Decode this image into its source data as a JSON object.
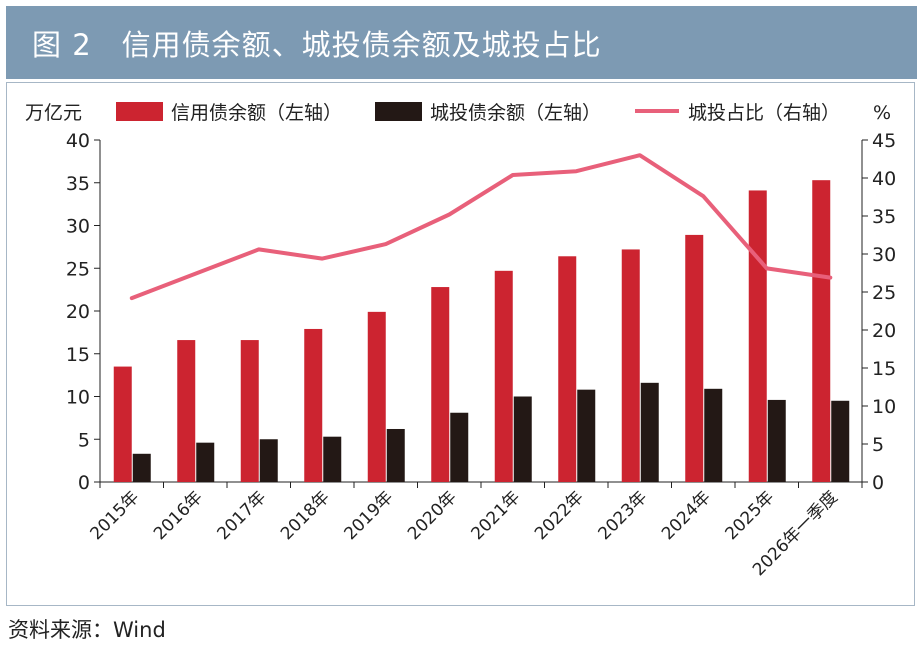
{
  "title": "图 2　信用债余额、城投债余额及城投占比",
  "source": "资料来源：Wind",
  "colors": {
    "credit": "#cc2430",
    "chengtou": "#231815",
    "ratio": "#e8607a",
    "header_bg": "#7d9ab3"
  },
  "chart_data": {
    "type": "bar",
    "left_unit": "万亿元",
    "right_unit": "%",
    "legend_position": "top",
    "categories": [
      "2015年",
      "2016年",
      "2017年",
      "2018年",
      "2019年",
      "2020年",
      "2021年",
      "2022年",
      "2023年",
      "2024年",
      "2025年",
      "2026年一季度"
    ],
    "series": [
      {
        "name": "信用债余额（左轴）",
        "type": "bar",
        "axis": "left",
        "values": [
          13.5,
          16.6,
          16.6,
          17.9,
          19.9,
          22.8,
          24.7,
          26.4,
          27.2,
          28.9,
          34.1,
          35.3
        ]
      },
      {
        "name": "城投债余额（左轴）",
        "type": "bar",
        "axis": "left",
        "values": [
          3.3,
          4.6,
          5.0,
          5.3,
          6.2,
          8.1,
          10.0,
          10.8,
          11.6,
          10.9,
          9.6,
          9.5
        ]
      },
      {
        "name": "城投占比（右轴）",
        "type": "line",
        "axis": "right",
        "values": [
          24.2,
          27.4,
          30.6,
          29.4,
          31.3,
          35.2,
          40.4,
          40.9,
          43.0,
          37.6,
          28.1,
          26.9
        ]
      }
    ],
    "left_ylim": [
      0,
      40
    ],
    "left_ticks": [
      0,
      5,
      10,
      15,
      20,
      25,
      30,
      35,
      40
    ],
    "right_ylim": [
      0,
      45
    ],
    "right_ticks": [
      0,
      5,
      10,
      15,
      20,
      25,
      30,
      35,
      40,
      45
    ],
    "grid": false
  }
}
